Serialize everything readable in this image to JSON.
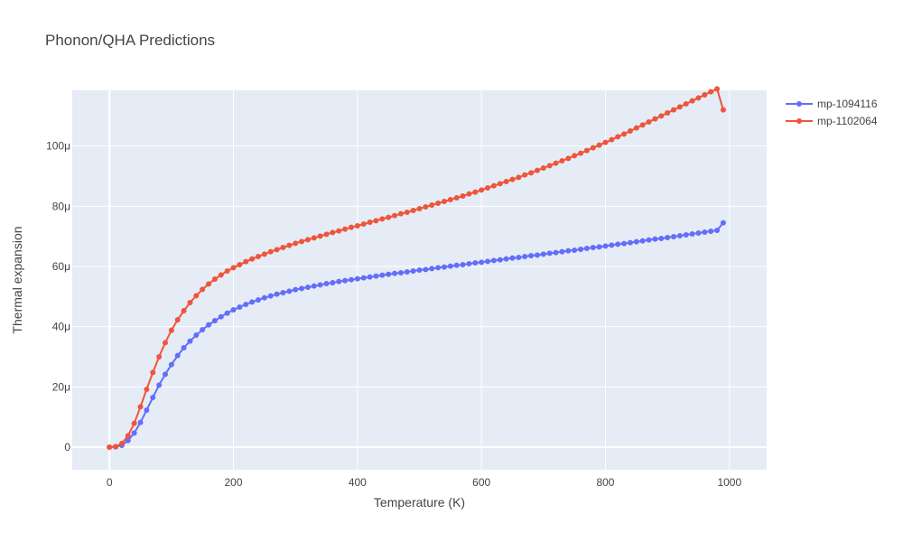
{
  "chart_data": {
    "type": "line",
    "title": "Phonon/QHA Predictions",
    "xlabel": "Temperature (K)",
    "ylabel": "Thermal expansion",
    "xlim": [
      -60,
      1060
    ],
    "ylim": [
      -7.5e-06,
      0.0001185
    ],
    "x_ticks": [
      {
        "value": 0,
        "label": "0"
      },
      {
        "value": 200,
        "label": "200"
      },
      {
        "value": 400,
        "label": "400"
      },
      {
        "value": 600,
        "label": "600"
      },
      {
        "value": 800,
        "label": "800"
      },
      {
        "value": 1000,
        "label": "1000"
      }
    ],
    "y_ticks": [
      {
        "value": 0,
        "label": "0"
      },
      {
        "value": 2e-05,
        "label": "20μ"
      },
      {
        "value": 4e-05,
        "label": "40μ"
      },
      {
        "value": 6e-05,
        "label": "60μ"
      },
      {
        "value": 8e-05,
        "label": "80μ"
      },
      {
        "value": 0.0001,
        "label": "100μ"
      }
    ],
    "grid": true,
    "legend_position": "top-right",
    "plot_background": "#e5ecf6",
    "series": [
      {
        "name": "mp-1094116",
        "color": "#636efa",
        "x": [
          0,
          10,
          20,
          30,
          40,
          50,
          60,
          70,
          80,
          90,
          100,
          110,
          120,
          130,
          140,
          150,
          160,
          170,
          180,
          190,
          200,
          210,
          220,
          230,
          240,
          250,
          260,
          270,
          280,
          290,
          300,
          310,
          320,
          330,
          340,
          350,
          360,
          370,
          380,
          390,
          400,
          410,
          420,
          430,
          440,
          450,
          460,
          470,
          480,
          490,
          500,
          510,
          520,
          530,
          540,
          550,
          560,
          570,
          580,
          590,
          600,
          610,
          620,
          630,
          640,
          650,
          660,
          670,
          680,
          690,
          700,
          710,
          720,
          730,
          740,
          750,
          760,
          770,
          780,
          790,
          800,
          810,
          820,
          830,
          840,
          850,
          860,
          870,
          880,
          890,
          900,
          910,
          920,
          930,
          940,
          950,
          960,
          970,
          980,
          990
        ],
        "y": [
          0,
          1e-07,
          6e-07,
          2.2e-06,
          4.7e-06,
          8.2e-06,
          1.23e-05,
          1.65e-05,
          2.06e-05,
          2.42e-05,
          2.74e-05,
          3.04e-05,
          3.3e-05,
          3.52e-05,
          3.72e-05,
          3.9e-05,
          4.06e-05,
          4.2e-05,
          4.33e-05,
          4.45e-05,
          4.56e-05,
          4.65e-05,
          4.74e-05,
          4.82e-05,
          4.89e-05,
          4.96e-05,
          5.02e-05,
          5.08e-05,
          5.13e-05,
          5.18e-05,
          5.23e-05,
          5.27e-05,
          5.31e-05,
          5.35e-05,
          5.39e-05,
          5.43e-05,
          5.46e-05,
          5.5e-05,
          5.53e-05,
          5.56e-05,
          5.59e-05,
          5.62e-05,
          5.65e-05,
          5.68e-05,
          5.71e-05,
          5.74e-05,
          5.77e-05,
          5.79e-05,
          5.82e-05,
          5.85e-05,
          5.88e-05,
          5.9e-05,
          5.93e-05,
          5.96e-05,
          5.98e-05,
          6.01e-05,
          6.04e-05,
          6.06e-05,
          6.09e-05,
          6.12e-05,
          6.14e-05,
          6.17e-05,
          6.2e-05,
          6.22e-05,
          6.25e-05,
          6.28e-05,
          6.3e-05,
          6.33e-05,
          6.36e-05,
          6.38e-05,
          6.41e-05,
          6.44e-05,
          6.46e-05,
          6.49e-05,
          6.52e-05,
          6.54e-05,
          6.57e-05,
          6.6e-05,
          6.63e-05,
          6.65e-05,
          6.68e-05,
          6.71e-05,
          6.74e-05,
          6.76e-05,
          6.79e-05,
          6.82e-05,
          6.85e-05,
          6.88e-05,
          6.91e-05,
          6.93e-05,
          6.96e-05,
          6.99e-05,
          7.02e-05,
          7.05e-05,
          7.08e-05,
          7.11e-05,
          7.14e-05,
          7.17e-05,
          7.2e-05,
          7.45e-05
        ]
      },
      {
        "name": "mp-1102064",
        "color": "#ef553b",
        "x": [
          0,
          10,
          20,
          30,
          40,
          50,
          60,
          70,
          80,
          90,
          100,
          110,
          120,
          130,
          140,
          150,
          160,
          170,
          180,
          190,
          200,
          210,
          220,
          230,
          240,
          250,
          260,
          270,
          280,
          290,
          300,
          310,
          320,
          330,
          340,
          350,
          360,
          370,
          380,
          390,
          400,
          410,
          420,
          430,
          440,
          450,
          460,
          470,
          480,
          490,
          500,
          510,
          520,
          530,
          540,
          550,
          560,
          570,
          580,
          590,
          600,
          610,
          620,
          630,
          640,
          650,
          660,
          670,
          680,
          690,
          700,
          710,
          720,
          730,
          740,
          750,
          760,
          770,
          780,
          790,
          800,
          810,
          820,
          830,
          840,
          850,
          860,
          870,
          880,
          890,
          900,
          910,
          920,
          930,
          940,
          950,
          960,
          970,
          980,
          990
        ],
        "y": [
          0,
          2e-07,
          1.2e-06,
          3.8e-06,
          7.9e-06,
          1.34e-05,
          1.92e-05,
          2.48e-05,
          3e-05,
          3.47e-05,
          3.88e-05,
          4.23e-05,
          4.53e-05,
          4.8e-05,
          5.03e-05,
          5.24e-05,
          5.42e-05,
          5.58e-05,
          5.72e-05,
          5.85e-05,
          5.96e-05,
          6.06e-05,
          6.16e-05,
          6.25e-05,
          6.33e-05,
          6.41e-05,
          6.49e-05,
          6.56e-05,
          6.63e-05,
          6.7e-05,
          6.77e-05,
          6.83e-05,
          6.89e-05,
          6.95e-05,
          7.01e-05,
          7.07e-05,
          7.13e-05,
          7.18e-05,
          7.24e-05,
          7.3e-05,
          7.35e-05,
          7.41e-05,
          7.47e-05,
          7.52e-05,
          7.58e-05,
          7.63e-05,
          7.69e-05,
          7.75e-05,
          7.8e-05,
          7.86e-05,
          7.92e-05,
          7.98e-05,
          8.04e-05,
          8.1e-05,
          8.16e-05,
          8.22e-05,
          8.28e-05,
          8.34e-05,
          8.41e-05,
          8.47e-05,
          8.54e-05,
          8.61e-05,
          8.68e-05,
          8.75e-05,
          8.82e-05,
          8.89e-05,
          8.96e-05,
          9.04e-05,
          9.11e-05,
          9.19e-05,
          9.27e-05,
          9.35e-05,
          9.43e-05,
          9.51e-05,
          9.59e-05,
          9.68e-05,
          9.76e-05,
          9.85e-05,
          9.94e-05,
          0.0001003,
          0.0001012,
          0.0001021,
          0.0001031,
          0.000104,
          0.000105,
          0.000106,
          0.000107,
          0.000108,
          0.000109,
          0.00011,
          0.000111,
          0.000112,
          0.000113,
          0.000114,
          0.000115,
          0.000116,
          0.000117,
          0.000118,
          0.000119,
          0.000112
        ]
      }
    ]
  }
}
